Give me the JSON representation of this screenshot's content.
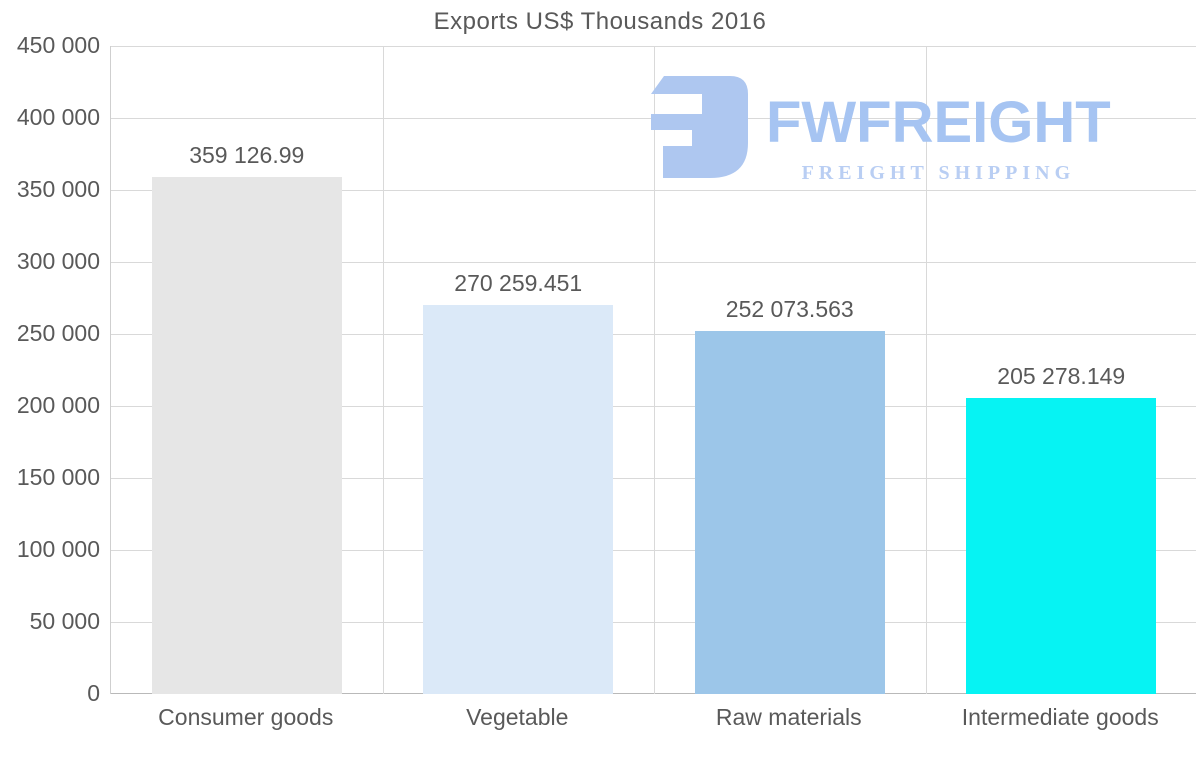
{
  "title": "Exports US$ Thousands 2016",
  "watermark": {
    "brand": "FWFREIGHT",
    "tagline": "FREIGHT SHIPPING",
    "icon": "fwfreight-logo-icon",
    "icon_color": "#aec7f0",
    "brand_color": "#a6c4f2",
    "tagline_color": "#b9cef3"
  },
  "chart_data": {
    "type": "bar",
    "title": "Exports US$ Thousands 2016",
    "categories": [
      "Consumer goods",
      "Vegetable",
      "Raw materials",
      "Intermediate goods"
    ],
    "values": [
      359126.99,
      270259.451,
      252073.563,
      205278.149
    ],
    "value_labels": [
      "359 126.99",
      "270 259.451",
      "252 073.563",
      "205 278.149"
    ],
    "bar_colors": [
      "#e6e6e6",
      "#dbe9f8",
      "#9cc6e9",
      "#06f3f3"
    ],
    "xlabel": "",
    "ylabel": "",
    "ylim": [
      0,
      450000
    ],
    "ytick_step": 50000,
    "ytick_labels": [
      "0",
      "50 000",
      "100 000",
      "150 000",
      "200 000",
      "250 000",
      "300 000",
      "350 000",
      "400 000",
      "450 000"
    ],
    "grid": true,
    "legend": false,
    "text_color": "#595959",
    "grid_color": "#d9d9d9"
  }
}
